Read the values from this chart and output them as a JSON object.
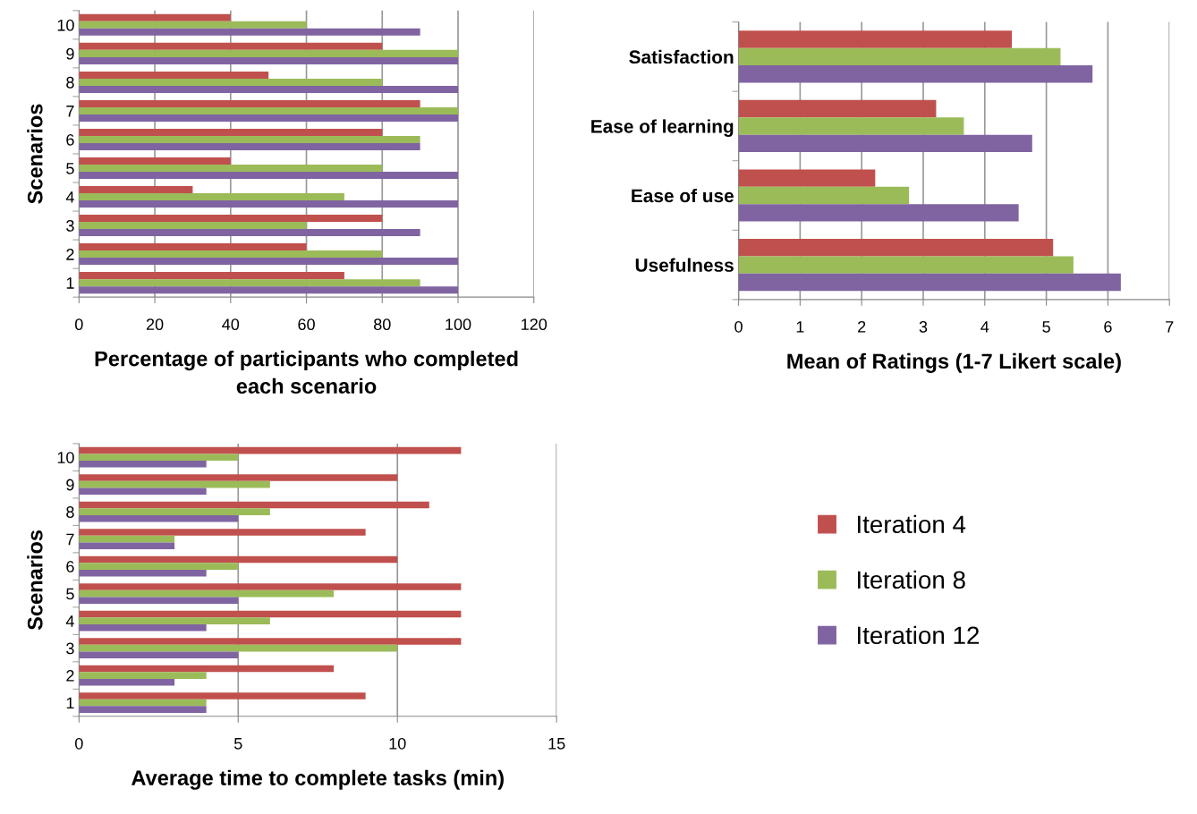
{
  "chart_data": [
    {
      "type": "bar",
      "orientation": "horizontal",
      "categories": [
        "10",
        "9",
        "8",
        "7",
        "6",
        "5",
        "4",
        "3",
        "2",
        "1"
      ],
      "xlabel": "Percentage of participants who completed each scenario",
      "ylabel": "Scenarios",
      "xlim": [
        0,
        120
      ],
      "xticks": [
        0,
        20,
        40,
        60,
        80,
        100,
        120
      ],
      "grid": "x",
      "legend": "bottom right",
      "series": [
        {
          "name": "Iteration 4",
          "color": "#c0504d",
          "values": [
            40,
            80,
            50,
            90,
            80,
            40,
            30,
            80,
            60,
            70
          ]
        },
        {
          "name": "Iteration 8",
          "color": "#9bbb59",
          "values": [
            60,
            100,
            80,
            100,
            90,
            80,
            70,
            60,
            80,
            90
          ]
        },
        {
          "name": "Iteration 12",
          "color": "#8064a2",
          "values": [
            90,
            100,
            100,
            100,
            90,
            100,
            100,
            90,
            100,
            100
          ]
        }
      ]
    },
    {
      "type": "bar",
      "orientation": "horizontal",
      "categories": [
        "Satisfaction",
        "Ease of learning",
        "Ease of use",
        "Usefulness"
      ],
      "xlabel": "Mean of Ratings (1-7 Likert scale)",
      "xlim": [
        0,
        7
      ],
      "xticks": [
        0,
        1,
        2,
        3,
        4,
        5,
        6,
        7
      ],
      "grid": "x",
      "series": [
        {
          "color": "#c0504d",
          "values": [
            4.44,
            3.21,
            2.22,
            5.11
          ]
        },
        {
          "color": "#9bbb59",
          "values": [
            5.23,
            3.66,
            2.77,
            5.44
          ]
        },
        {
          "color": "#8064a2",
          "values": [
            5.75,
            4.77,
            4.55,
            6.21
          ]
        }
      ]
    },
    {
      "type": "bar",
      "orientation": "horizontal",
      "categories": [
        "10",
        "9",
        "8",
        "7",
        "6",
        "5",
        "4",
        "3",
        "2",
        "1"
      ],
      "xlabel": "Average time to complete tasks (min)",
      "ylabel": "Scenarios",
      "xlim": [
        0,
        15
      ],
      "xticks": [
        0,
        5,
        10,
        15
      ],
      "grid": "x",
      "series": [
        {
          "color": "#c0504d",
          "values": [
            12,
            10,
            11,
            9,
            10,
            12,
            12,
            12,
            8,
            9
          ]
        },
        {
          "color": "#9bbb59",
          "values": [
            5,
            6,
            6,
            3,
            5,
            8,
            6,
            10,
            4,
            4
          ]
        },
        {
          "color": "#8064a2",
          "values": [
            4,
            4,
            5,
            3,
            4,
            5,
            4,
            5,
            3,
            4
          ]
        }
      ]
    }
  ]
}
